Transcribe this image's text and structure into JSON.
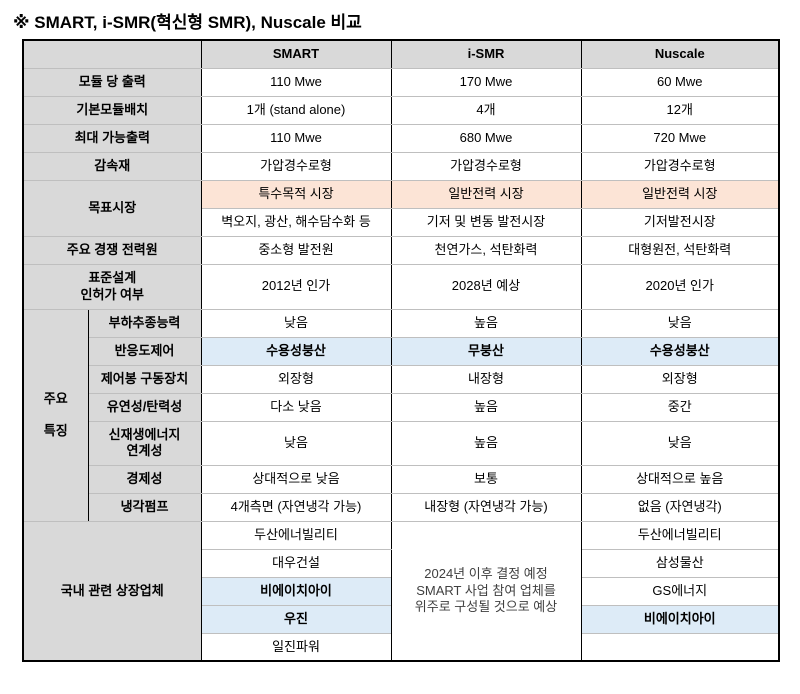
{
  "title": "※ SMART, i-SMR(혁신형 SMR), Nuscale 비교",
  "header": {
    "corner": "",
    "smart": "SMART",
    "ismr": "i-SMR",
    "nuscale": "Nuscale"
  },
  "rows": {
    "module_power": {
      "label": "모듈 당 출력",
      "smart": "110 Mwe",
      "ismr": "170 Mwe",
      "nuscale": "60 Mwe"
    },
    "base_module": {
      "label": "기본모듈배치",
      "smart": "1개 (stand alone)",
      "ismr": "4개",
      "nuscale": "12개"
    },
    "max_power": {
      "label": "최대 가능출력",
      "smart": "110 Mwe",
      "ismr": "680 Mwe",
      "nuscale": "720 Mwe"
    },
    "moderator": {
      "label": "감속재",
      "smart": "가압경수로형",
      "ismr": "가압경수로형",
      "nuscale": "가압경수로형"
    },
    "target_market": {
      "label": "목표시장",
      "primary": {
        "smart": "특수목적 시장",
        "ismr": "일반전력 시장",
        "nuscale": "일반전력 시장"
      },
      "secondary": {
        "smart": "벽오지, 광산, 해수담수화 등",
        "ismr": "기저 및 변동 발전시장",
        "nuscale": "기저발전시장"
      }
    },
    "competitors": {
      "label": "주요 경쟁 전력원",
      "smart": "중소형 발전원",
      "ismr": "천연가스, 석탄화력",
      "nuscale": "대형원전, 석탄화력"
    },
    "license": {
      "label": "표준설계\n인허가 여부",
      "smart": "2012년 인가",
      "ismr": "2028년 예상",
      "nuscale": "2020년 인가"
    },
    "features": {
      "group_label": "주요\n\n특징",
      "load_follow": {
        "label": "부하추종능력",
        "smart": "낮음",
        "ismr": "높음",
        "nuscale": "낮음"
      },
      "reactivity": {
        "label": "반응도제어",
        "smart": "수용성붕산",
        "ismr": "무붕산",
        "nuscale": "수용성붕산"
      },
      "control_rod": {
        "label": "제어봉 구동장치",
        "smart": "외장형",
        "ismr": "내장형",
        "nuscale": "외장형"
      },
      "flexibility": {
        "label": "유연성/탄력성",
        "smart": "다소 낮음",
        "ismr": "높음",
        "nuscale": "중간"
      },
      "renewable": {
        "label": "신재생에너지\n연계성",
        "smart": "낮음",
        "ismr": "높음",
        "nuscale": "낮음"
      },
      "economics": {
        "label": "경제성",
        "smart": "상대적으로 낮음",
        "ismr": "보통",
        "nuscale": "상대적으로 높음"
      },
      "coolant_pump": {
        "label": "냉각펌프",
        "smart": "4개측면 (자연냉각 가능)",
        "ismr": "내장형 (자연냉각 가능)",
        "nuscale": "없음 (자연냉각)"
      }
    },
    "companies": {
      "label": "국내 관련 상장업체",
      "smart": [
        "두산에너빌리티",
        "대우건설",
        "비에이치아이",
        "우진",
        "일진파워"
      ],
      "ismr_note": "2024년 이후 결정 예정\nSMART 사업 참여 업체를\n위주로 구성될 것으로 예상",
      "nuscale": [
        "두산에너빌리티",
        "삼성물산",
        "GS에너지",
        "비에이치아이",
        ""
      ]
    }
  }
}
